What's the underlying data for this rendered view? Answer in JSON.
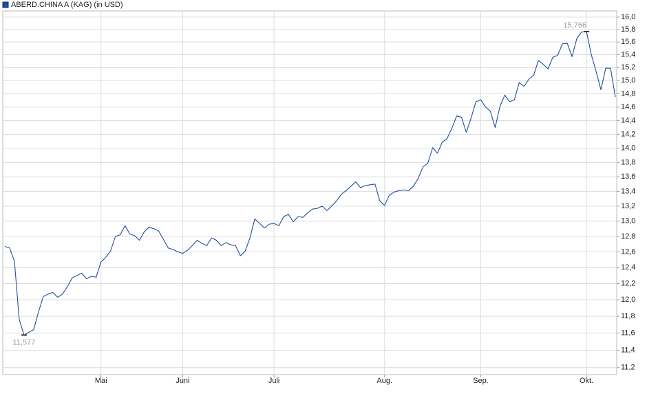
{
  "chart_data": {
    "type": "line",
    "series": [
      {
        "name": "ABERD.CHINA A (KAG)  (in USD)",
        "color": "#1f4e9c",
        "values": [
          12.67,
          12.65,
          12.48,
          11.76,
          11.577,
          11.61,
          11.64,
          11.85,
          12.04,
          12.07,
          12.09,
          12.03,
          12.07,
          12.16,
          12.27,
          12.3,
          12.33,
          12.26,
          12.29,
          12.28,
          12.47,
          12.53,
          12.61,
          12.8,
          12.82,
          12.94,
          12.83,
          12.81,
          12.75,
          12.86,
          12.92,
          12.9,
          12.87,
          12.76,
          12.65,
          12.63,
          12.6,
          12.58,
          12.62,
          12.68,
          12.75,
          12.71,
          12.68,
          12.78,
          12.75,
          12.68,
          12.72,
          12.69,
          12.68,
          12.55,
          12.61,
          12.78,
          13.03,
          12.97,
          12.91,
          12.96,
          12.97,
          12.94,
          13.06,
          13.09,
          12.99,
          13.06,
          13.05,
          13.11,
          13.16,
          13.17,
          13.2,
          13.14,
          13.2,
          13.27,
          13.36,
          13.41,
          13.47,
          13.53,
          13.45,
          13.48,
          13.49,
          13.5,
          13.27,
          13.21,
          13.35,
          13.39,
          13.41,
          13.42,
          13.41,
          13.47,
          13.58,
          13.74,
          13.79,
          14.01,
          13.93,
          14.09,
          14.14,
          14.29,
          14.47,
          14.45,
          14.23,
          14.44,
          14.68,
          14.71,
          14.6,
          14.54,
          14.3,
          14.61,
          14.78,
          14.68,
          14.71,
          14.97,
          14.91,
          15.02,
          15.08,
          15.31,
          15.25,
          15.18,
          15.36,
          15.39,
          15.57,
          15.58,
          15.37,
          15.66,
          15.76,
          15.766,
          15.4,
          15.14,
          14.86,
          15.19,
          15.19,
          14.75
        ],
        "value_labels": [
          null,
          null,
          null,
          null,
          "11,577",
          null,
          null,
          null,
          null,
          null,
          null,
          null,
          null,
          null,
          null,
          null,
          null,
          null,
          null,
          null,
          null,
          null,
          null,
          null,
          null,
          null,
          null,
          null,
          null,
          null,
          null,
          null,
          null,
          null,
          null,
          null,
          null,
          null,
          null,
          null,
          null,
          null,
          null,
          null,
          null,
          null,
          null,
          null,
          null,
          null,
          null,
          null,
          null,
          null,
          null,
          null,
          null,
          null,
          null,
          null,
          null,
          null,
          null,
          null,
          null,
          null,
          null,
          null,
          null,
          null,
          null,
          null,
          null,
          null,
          null,
          null,
          null,
          null,
          null,
          null,
          null,
          null,
          null,
          null,
          null,
          null,
          null,
          null,
          null,
          null,
          null,
          null,
          null,
          null,
          null,
          null,
          null,
          null,
          null,
          null,
          null,
          null,
          null,
          null,
          null,
          null,
          null,
          null,
          null,
          null,
          null,
          null,
          null,
          null,
          null,
          null,
          null,
          null,
          null,
          null,
          null,
          "15,766",
          null,
          null,
          null,
          null,
          null,
          null
        ]
      }
    ],
    "categories": [
      null,
      null,
      null,
      null,
      null,
      null,
      null,
      null,
      null,
      null,
      null,
      null,
      null,
      null,
      null,
      null,
      null,
      null,
      null,
      null,
      "Mai",
      null,
      null,
      null,
      null,
      null,
      null,
      null,
      null,
      null,
      null,
      null,
      null,
      null,
      null,
      null,
      null,
      "Juni",
      null,
      null,
      null,
      null,
      null,
      null,
      null,
      null,
      null,
      null,
      null,
      null,
      null,
      null,
      null,
      null,
      null,
      null,
      "Juli",
      null,
      null,
      null,
      null,
      null,
      null,
      null,
      null,
      null,
      null,
      null,
      null,
      null,
      null,
      null,
      null,
      null,
      null,
      null,
      null,
      null,
      null,
      "Aug.",
      null,
      null,
      null,
      null,
      null,
      null,
      null,
      null,
      null,
      null,
      null,
      null,
      null,
      null,
      null,
      null,
      null,
      null,
      null,
      "Sep.",
      null,
      null,
      null,
      null,
      null,
      null,
      null,
      null,
      null,
      null,
      null,
      null,
      null,
      null,
      null,
      null,
      null,
      null,
      null,
      null,
      null,
      "Okt.",
      null,
      null,
      null,
      null,
      null,
      null
    ],
    "ylim": [
      11.12,
      16.1
    ],
    "log_scale": true,
    "grid": true,
    "yticks": [
      {
        "value": 11.2,
        "label": "11,2"
      },
      {
        "value": 11.4,
        "label": "11,4"
      },
      {
        "value": 11.6,
        "label": "11,6"
      },
      {
        "value": 11.8,
        "label": "11,8"
      },
      {
        "value": 12.0,
        "label": "12,0"
      },
      {
        "value": 12.2,
        "label": "12,2"
      },
      {
        "value": 12.4,
        "label": "12,4"
      },
      {
        "value": 12.6,
        "label": "12,6"
      },
      {
        "value": 12.8,
        "label": "12,8"
      },
      {
        "value": 13.0,
        "label": "13,0"
      },
      {
        "value": 13.2,
        "label": "13,2"
      },
      {
        "value": 13.4,
        "label": "13,4"
      },
      {
        "value": 13.6,
        "label": "13,6"
      },
      {
        "value": 13.8,
        "label": "13,8"
      },
      {
        "value": 14.0,
        "label": "14,0"
      },
      {
        "value": 14.2,
        "label": "14,2"
      },
      {
        "value": 14.4,
        "label": "14,4"
      },
      {
        "value": 14.6,
        "label": "14,6"
      },
      {
        "value": 14.8,
        "label": "14,8"
      },
      {
        "value": 15.0,
        "label": "15,0"
      },
      {
        "value": 15.2,
        "label": "15,2"
      },
      {
        "value": 15.4,
        "label": "15,4"
      },
      {
        "value": 15.6,
        "label": "15,6"
      },
      {
        "value": 15.8,
        "label": "15,8"
      },
      {
        "value": 16.0,
        "label": "16,0"
      }
    ]
  }
}
